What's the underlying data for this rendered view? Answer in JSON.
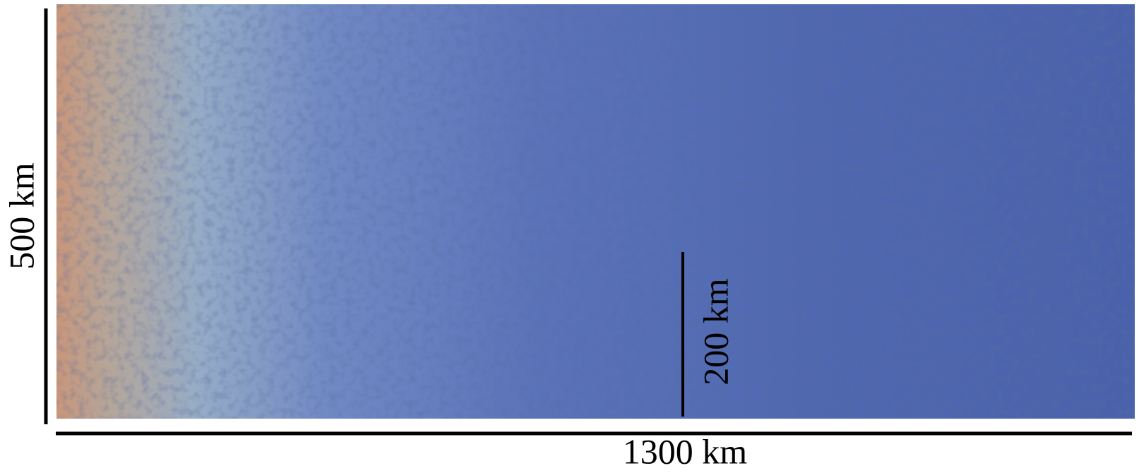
{
  "labels": {
    "height": "500 km",
    "width": "1300 km",
    "scale": "200 km"
  }
}
